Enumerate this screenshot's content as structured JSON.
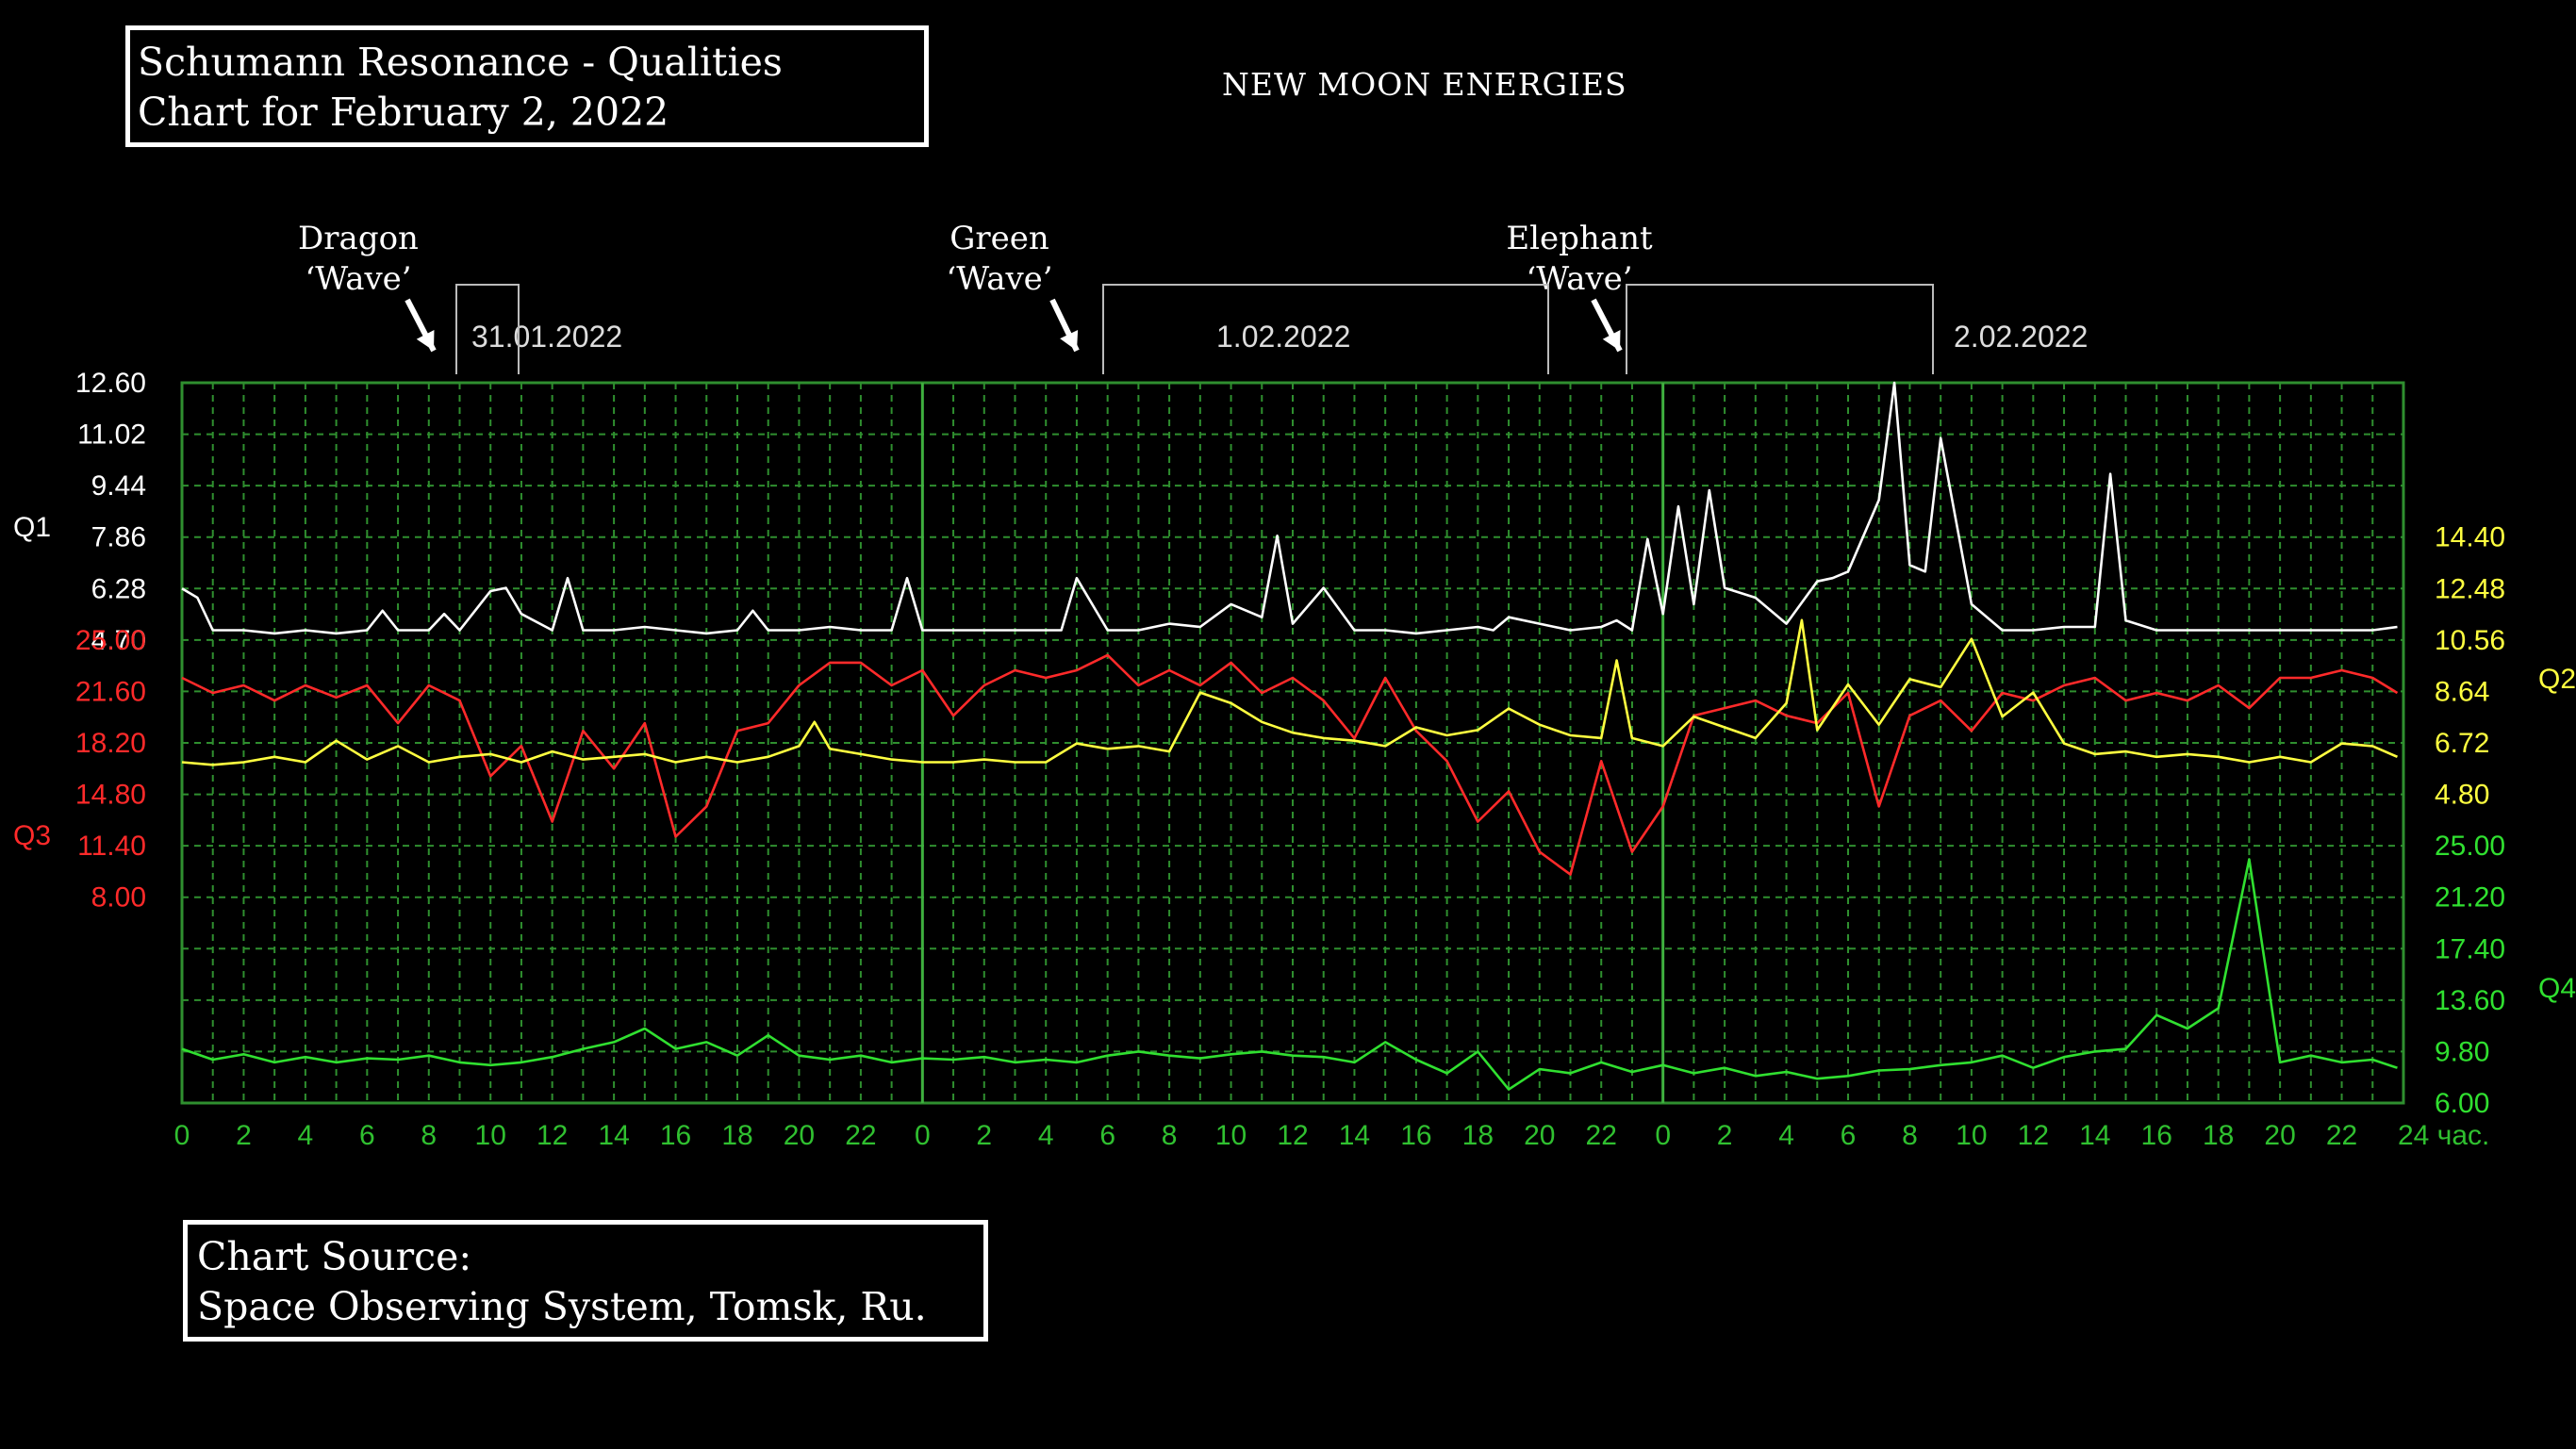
{
  "header": {
    "title_line1": "Schumann Resonance - Qualities",
    "title_line2": "Chart for February 2, 2022",
    "subtitle": "NEW MOON ENERGIES"
  },
  "footer": {
    "source_line1": "Chart Source:",
    "source_line2": "Space Observing System, Tomsk, Ru."
  },
  "annotations": [
    {
      "line1": "Dragon",
      "line2": "‘Wave’"
    },
    {
      "line1": "Green",
      "line2": "‘Wave’"
    },
    {
      "line1": "Elephant",
      "line2": "‘Wave’"
    }
  ],
  "chart_data": {
    "type": "line",
    "grid": true,
    "background": "#000000",
    "grid_color": "#2f8f2f",
    "date_labels": [
      "31.01.2022",
      "1.02.2022",
      "2.02.2022"
    ],
    "x_tick_labels": [
      "0",
      "2",
      "4",
      "6",
      "8",
      "10",
      "12",
      "14",
      "16",
      "18",
      "20",
      "22",
      "0",
      "2",
      "4",
      "6",
      "8",
      "10",
      "12",
      "14",
      "16",
      "18",
      "20",
      "22",
      "0",
      "2",
      "4",
      "6",
      "8",
      "10",
      "12",
      "14",
      "16",
      "18",
      "20",
      "22",
      "24 час."
    ],
    "xlim": [
      0,
      72
    ],
    "left_axes": [
      {
        "name": "Q1",
        "color": "#ffffff",
        "ticks": [
          "12.60",
          "11.02",
          "9.44",
          "7.86",
          "6.28",
          "4.70"
        ],
        "ylim": [
          4.7,
          12.6
        ]
      },
      {
        "name": "Q3",
        "color": "#ff2a2a",
        "ticks": [
          "25.00",
          "21.60",
          "18.20",
          "14.80",
          "11.40",
          "8.00"
        ],
        "ylim": [
          8.0,
          25.0
        ]
      }
    ],
    "right_axes": [
      {
        "name": "Q2",
        "color": "#ffff40",
        "ticks": [
          "14.40",
          "12.48",
          "10.56",
          "8.64",
          "6.72",
          "4.80"
        ],
        "ylim": [
          4.8,
          14.4
        ]
      },
      {
        "name": "Q4",
        "color": "#30e030",
        "ticks": [
          "25.00",
          "21.20",
          "17.40",
          "13.60",
          "9.80",
          "6.00"
        ],
        "ylim": [
          6.0,
          25.0
        ]
      }
    ],
    "series": [
      {
        "name": "Q1",
        "color": "#ffffff",
        "x": [
          0,
          0.5,
          1,
          2,
          3,
          4,
          5,
          6,
          6.5,
          7,
          8,
          8.5,
          9,
          10,
          10.5,
          11,
          12,
          12.5,
          13,
          14,
          15,
          16,
          17,
          18,
          18.5,
          19,
          20,
          21,
          22,
          23,
          23.5,
          24,
          25,
          26,
          27,
          28,
          28.5,
          29,
          30,
          31,
          32,
          33,
          34,
          35,
          35.5,
          36,
          37,
          38,
          39,
          40,
          41,
          42,
          42.5,
          43,
          44,
          45,
          46,
          46.5,
          47,
          47.5,
          48,
          48.5,
          49,
          49.5,
          50,
          51,
          52,
          53,
          53.5,
          54,
          55,
          55.5,
          56,
          56.5,
          57,
          58,
          59,
          60,
          61,
          62,
          62.5,
          63,
          64,
          65,
          66,
          67,
          68,
          69,
          70,
          71,
          71.8
        ],
        "y": [
          6.28,
          6.0,
          5.0,
          5.0,
          4.9,
          5.0,
          4.9,
          5.0,
          5.6,
          5.0,
          5.0,
          5.5,
          5.0,
          6.2,
          6.3,
          5.5,
          5.0,
          6.6,
          5.0,
          5.0,
          5.1,
          5.0,
          4.9,
          5.0,
          5.6,
          5.0,
          5.0,
          5.1,
          5.0,
          5.0,
          6.6,
          5.0,
          5.0,
          5.0,
          5.0,
          5.0,
          5.0,
          6.6,
          5.0,
          5.0,
          5.2,
          5.1,
          5.8,
          5.4,
          7.9,
          5.2,
          6.3,
          5.0,
          5.0,
          4.9,
          5.0,
          5.1,
          5.0,
          5.4,
          5.2,
          5.0,
          5.1,
          5.3,
          5.0,
          7.8,
          5.5,
          8.8,
          5.8,
          9.3,
          6.3,
          6.0,
          5.2,
          6.5,
          6.6,
          6.8,
          9.0,
          12.6,
          7.0,
          6.8,
          10.9,
          5.8,
          5.0,
          5.0,
          5.1,
          5.1,
          9.8,
          5.3,
          5.0,
          5.0,
          5.0,
          5.0,
          5.0,
          5.0,
          5.0,
          5.0,
          5.1
        ]
      },
      {
        "name": "Q2",
        "color": "#ffff40",
        "x": [
          0,
          1,
          2,
          3,
          4,
          5,
          6,
          7,
          8,
          9,
          10,
          11,
          12,
          13,
          14,
          15,
          16,
          17,
          18,
          19,
          20,
          20.5,
          21,
          22,
          23,
          24,
          25,
          26,
          27,
          28,
          29,
          30,
          31,
          32,
          33,
          34,
          35,
          36,
          37,
          38,
          39,
          40,
          41,
          42,
          43,
          44,
          45,
          46,
          46.5,
          47,
          48,
          49,
          50,
          51,
          52,
          52.5,
          53,
          54,
          55,
          56,
          57,
          58,
          59,
          60,
          61,
          62,
          63,
          64,
          65,
          66,
          67,
          68,
          69,
          70,
          71,
          71.8
        ],
        "y": [
          6.0,
          5.9,
          6.0,
          6.2,
          6.0,
          6.8,
          6.1,
          6.6,
          6.0,
          6.2,
          6.3,
          6.0,
          6.4,
          6.1,
          6.2,
          6.3,
          6.0,
          6.2,
          6.0,
          6.2,
          6.6,
          7.5,
          6.5,
          6.3,
          6.1,
          6.0,
          6.0,
          6.1,
          6.0,
          6.0,
          6.7,
          6.5,
          6.6,
          6.4,
          8.6,
          8.2,
          7.5,
          7.1,
          6.9,
          6.8,
          6.6,
          7.3,
          7.0,
          7.2,
          8.0,
          7.4,
          7.0,
          6.9,
          9.8,
          6.9,
          6.6,
          7.7,
          7.3,
          6.9,
          8.2,
          11.3,
          7.2,
          8.9,
          7.4,
          9.1,
          8.8,
          10.6,
          7.7,
          8.6,
          6.7,
          6.3,
          6.4,
          6.2,
          6.3,
          6.2,
          6.0,
          6.2,
          6.0,
          6.7,
          6.6,
          6.2
        ]
      },
      {
        "name": "Q3",
        "color": "#ff2a2a",
        "x": [
          0,
          1,
          2,
          3,
          4,
          5,
          6,
          7,
          8,
          9,
          10,
          11,
          12,
          13,
          14,
          15,
          16,
          17,
          18,
          19,
          20,
          21,
          22,
          23,
          24,
          25,
          26,
          27,
          28,
          29,
          30,
          31,
          32,
          33,
          34,
          35,
          36,
          37,
          38,
          39,
          40,
          41,
          42,
          43,
          44,
          45,
          46,
          47,
          48,
          49,
          50,
          51,
          52,
          53,
          54,
          55,
          56,
          57,
          58,
          59,
          60,
          61,
          62,
          63,
          64,
          65,
          66,
          67,
          68,
          69,
          70,
          71,
          71.8
        ],
        "y": [
          22.5,
          21.5,
          22.0,
          21.0,
          22.0,
          21.2,
          22.0,
          19.5,
          22.0,
          21.0,
          16.0,
          18.0,
          13.0,
          19.0,
          16.5,
          19.5,
          12.0,
          14.0,
          19.0,
          19.5,
          22.0,
          23.5,
          23.5,
          22.0,
          23.0,
          20.0,
          22.0,
          23.0,
          22.5,
          23.0,
          24.0,
          22.0,
          23.0,
          22.0,
          23.5,
          21.5,
          22.5,
          21.0,
          18.5,
          22.5,
          19.0,
          17.0,
          13.0,
          15.0,
          11.0,
          9.5,
          17.0,
          11.0,
          14.0,
          20.0,
          20.5,
          21.0,
          20.0,
          19.5,
          21.5,
          14.0,
          20.0,
          21.0,
          19.0,
          21.5,
          21.0,
          22.0,
          22.5,
          21.0,
          21.5,
          21.0,
          22.0,
          20.5,
          22.5,
          22.5,
          23.0,
          22.5,
          21.5
        ]
      },
      {
        "name": "Q4",
        "color": "#30e030",
        "x": [
          0,
          1,
          2,
          3,
          4,
          5,
          6,
          7,
          8,
          9,
          10,
          11,
          12,
          13,
          14,
          15,
          16,
          17,
          18,
          19,
          20,
          21,
          22,
          23,
          24,
          25,
          26,
          27,
          28,
          29,
          30,
          31,
          32,
          33,
          34,
          35,
          36,
          37,
          38,
          39,
          40,
          41,
          42,
          43,
          44,
          45,
          46,
          47,
          48,
          49,
          50,
          51,
          52,
          53,
          54,
          55,
          56,
          57,
          58,
          59,
          60,
          61,
          62,
          63,
          64,
          65,
          66,
          67,
          68,
          69,
          70,
          71,
          71.8
        ],
        "y": [
          10.0,
          9.2,
          9.6,
          9.0,
          9.4,
          9.0,
          9.3,
          9.2,
          9.5,
          9.0,
          8.8,
          9.0,
          9.4,
          10.0,
          10.5,
          11.5,
          10.0,
          10.5,
          9.5,
          11.0,
          9.5,
          9.2,
          9.5,
          9.0,
          9.3,
          9.2,
          9.4,
          9.0,
          9.2,
          9.0,
          9.5,
          9.8,
          9.5,
          9.3,
          9.6,
          9.8,
          9.5,
          9.4,
          9.0,
          10.5,
          9.2,
          8.2,
          9.8,
          7.0,
          8.5,
          8.2,
          9.0,
          8.3,
          8.8,
          8.2,
          8.6,
          8.0,
          8.3,
          7.8,
          8.0,
          8.4,
          8.5,
          8.8,
          9.0,
          9.5,
          8.6,
          9.4,
          9.8,
          10.0,
          12.5,
          11.5,
          13.0,
          24.0,
          9.0,
          9.5,
          9.0,
          9.2,
          8.6
        ]
      }
    ]
  }
}
